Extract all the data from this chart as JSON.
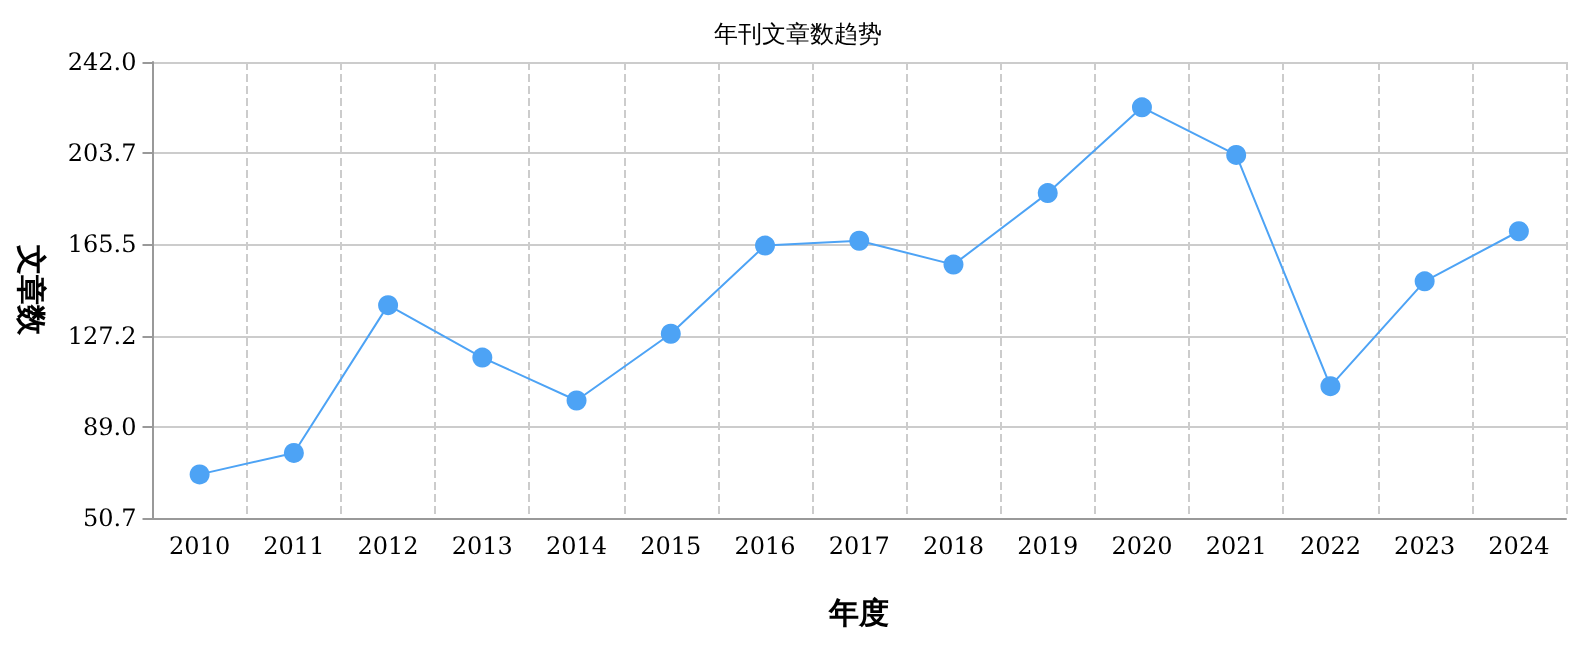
{
  "chart_data": {
    "type": "line",
    "title": "年刊文章数趋势",
    "xlabel": "年度",
    "ylabel": "文章数",
    "categories": [
      "2010",
      "2011",
      "2012",
      "2013",
      "2014",
      "2015",
      "2016",
      "2017",
      "2018",
      "2019",
      "2020",
      "2021",
      "2022",
      "2023",
      "2024"
    ],
    "series": [
      {
        "color": "#4da3f5",
        "values": [
          69,
          78,
          140,
          118,
          100,
          128,
          165,
          167,
          157,
          187,
          223,
          203,
          106,
          150,
          171
        ]
      }
    ],
    "ylim": [
      50.7,
      242.0
    ],
    "yticks": [
      50.7,
      {
        "value": 89.0,
        "label": "89.0"
      },
      127.2,
      165.5,
      203.7,
      {
        "value": 242.0,
        "label": "242.0"
      }
    ],
    "grid": true,
    "marker": "circle",
    "line_style": "solid"
  }
}
